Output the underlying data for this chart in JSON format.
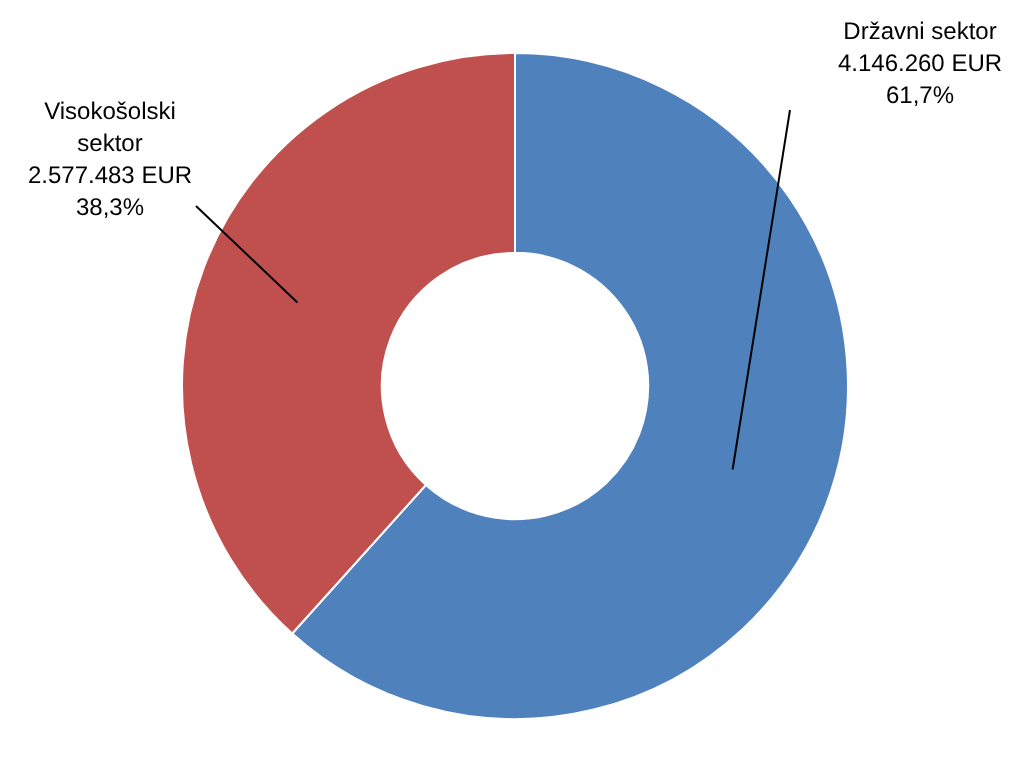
{
  "chart_data": {
    "type": "donut",
    "categories": [
      "Državni sektor",
      "Visokošolski sektor"
    ],
    "values": [
      4146260,
      2577483
    ],
    "colors": [
      "#4f81bd",
      "#c0504d"
    ],
    "value_labels": [
      "4.146.260 EUR\n61,7%",
      "2.577.483 EUR\n38,3%"
    ],
    "legend": false
  }
}
